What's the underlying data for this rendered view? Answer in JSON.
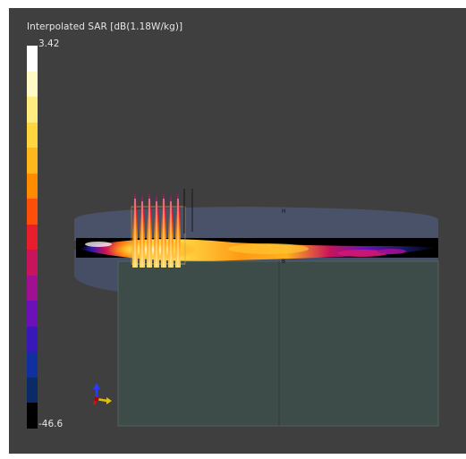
{
  "legend": {
    "title": "Interpolated SAR [dB(1.18W/kg)]",
    "max_label": "3.42",
    "min_label": "-46.6",
    "colors_top_to_bottom": [
      "#ffffff",
      "#fff9c8",
      "#ffec80",
      "#ffd640",
      "#ffb81c",
      "#ff8c00",
      "#ff4e0a",
      "#e81e2e",
      "#c8145a",
      "#a01090",
      "#6c10b8",
      "#3818b8",
      "#1030a0",
      "#0a2a68",
      "#000000"
    ]
  },
  "markers": {
    "marker_a": "H",
    "marker_b": "B"
  },
  "colors": {
    "viewport_background": "#3f3f3f",
    "phantom_body": "#3d4c48",
    "shell": "#4b5670",
    "dipole_wire": "#c9a24c"
  },
  "icons": {
    "axis_gizmo": "xyz-axes-icon"
  }
}
